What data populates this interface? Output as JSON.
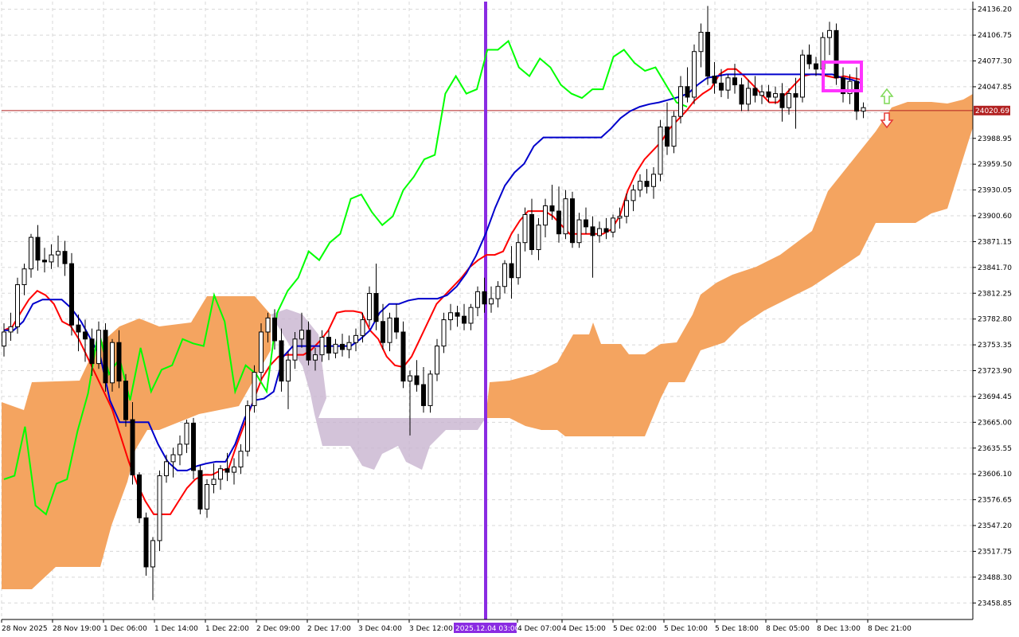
{
  "chart_data": {
    "type": "candlestick",
    "indicator": "Ichimoku Kinko Hyo",
    "y_axis": {
      "position": "right",
      "ticks": [
        24136.2,
        24106.75,
        24077.3,
        24047.85,
        24018.4,
        23988.95,
        23959.5,
        23930.05,
        23900.6,
        23871.15,
        23841.7,
        23812.25,
        23782.8,
        23753.35,
        23723.9,
        23694.45,
        23665.0,
        23635.55,
        23606.1,
        23576.65,
        23547.2,
        23517.75,
        23488.3,
        23458.85
      ],
      "tick_labels": [
        "24136.20",
        "24106.75",
        "24077.30",
        "24047.85",
        "",
        "23988.95",
        "23959.50",
        "23930.05",
        "23900.60",
        "23871.15",
        "23841.70",
        "23812.25",
        "23782.80",
        "23753.35",
        "23723.90",
        "23694.45",
        "23665.00",
        "23635.55",
        "23606.10",
        "23576.65",
        "23547.20",
        "23517.75",
        "23488.30",
        "23458.85"
      ],
      "range": [
        23440,
        24145
      ]
    },
    "x_axis": {
      "tick_labels": [
        "28 Nov 2025",
        "28 Nov 19:00",
        "1 Dec 06:00",
        "1 Dec 14:00",
        "1 Dec 22:00",
        "2 Dec 09:00",
        "2 Dec 17:00",
        "3 Dec 04:00",
        "3 Dec 12:00",
        "2025.12.04 03:00",
        "4 Dec 07:00",
        "4 Dec 15:00",
        "5 Dec 02:00",
        "5 Dec 10:00",
        "5 Dec 18:00",
        "8 Dec 05:00",
        "8 Dec 13:00",
        "8 Dec 21:00"
      ],
      "highlighted_label": "2025.12.04 03:00"
    },
    "current_price": {
      "value": 24020.69,
      "label": "24020.69",
      "line_color": "#b22222",
      "tag_color": "#b22222"
    },
    "vertical_marker": {
      "label": "2025.12.04 03:00",
      "color": "#8a2be2"
    },
    "grid": true,
    "candles": [
      [
        23752,
        23778,
        23740,
        23768
      ],
      [
        23768,
        23790,
        23758,
        23774
      ],
      [
        23774,
        23830,
        23766,
        23822
      ],
      [
        23822,
        23846,
        23810,
        23840
      ],
      [
        23840,
        23880,
        23830,
        23876
      ],
      [
        23876,
        23890,
        23838,
        23850
      ],
      [
        23850,
        23864,
        23836,
        23848
      ],
      [
        23848,
        23868,
        23840,
        23856
      ],
      [
        23856,
        23878,
        23842,
        23860
      ],
      [
        23860,
        23872,
        23832,
        23846
      ],
      [
        23846,
        23858,
        23764,
        23776
      ],
      [
        23776,
        23788,
        23746,
        23768
      ],
      [
        23768,
        23782,
        23734,
        23760
      ],
      [
        23760,
        23772,
        23718,
        23732
      ],
      [
        23732,
        23780,
        23726,
        23770
      ],
      [
        23770,
        23778,
        23700,
        23710
      ],
      [
        23710,
        23760,
        23700,
        23756
      ],
      [
        23756,
        23770,
        23704,
        23712
      ],
      [
        23712,
        23720,
        23660,
        23668
      ],
      [
        23668,
        23688,
        23594,
        23605
      ],
      [
        23605,
        23608,
        23550,
        23556
      ],
      [
        23556,
        23562,
        23490,
        23500
      ],
      [
        23500,
        23534,
        23462,
        23530
      ],
      [
        23530,
        23610,
        23518,
        23604
      ],
      [
        23604,
        23628,
        23596,
        23620
      ],
      [
        23620,
        23636,
        23602,
        23628
      ],
      [
        23628,
        23650,
        23616,
        23640
      ],
      [
        23640,
        23668,
        23630,
        23664
      ],
      [
        23664,
        23670,
        23600,
        23610
      ],
      [
        23610,
        23616,
        23560,
        23566
      ],
      [
        23566,
        23600,
        23556,
        23594
      ],
      [
        23594,
        23618,
        23584,
        23600
      ],
      [
        23600,
        23616,
        23588,
        23612
      ],
      [
        23612,
        23630,
        23598,
        23608
      ],
      [
        23608,
        23624,
        23594,
        23614
      ],
      [
        23614,
        23640,
        23606,
        23632
      ],
      [
        23632,
        23690,
        23626,
        23684
      ],
      [
        23684,
        23730,
        23676,
        23722
      ],
      [
        23722,
        23778,
        23714,
        23768
      ],
      [
        23768,
        23790,
        23756,
        23784
      ],
      [
        23784,
        23794,
        23748,
        23758
      ],
      [
        23758,
        23772,
        23700,
        23712
      ],
      [
        23712,
        23746,
        23680,
        23736
      ],
      [
        23736,
        23768,
        23726,
        23760
      ],
      [
        23760,
        23790,
        23750,
        23770
      ],
      [
        23770,
        23780,
        23730,
        23736
      ],
      [
        23736,
        23750,
        23724,
        23742
      ],
      [
        23742,
        23770,
        23734,
        23762
      ],
      [
        23762,
        23770,
        23736,
        23744
      ],
      [
        23744,
        23760,
        23738,
        23754
      ],
      [
        23754,
        23766,
        23740,
        23748
      ],
      [
        23748,
        23764,
        23738,
        23756
      ],
      [
        23756,
        23772,
        23746,
        23764
      ],
      [
        23764,
        23790,
        23756,
        23782
      ],
      [
        23782,
        23820,
        23774,
        23812
      ],
      [
        23812,
        23846,
        23770,
        23780
      ],
      [
        23780,
        23800,
        23748,
        23756
      ],
      [
        23756,
        23790,
        23746,
        23784
      ],
      [
        23784,
        23800,
        23760,
        23768
      ],
      [
        23768,
        23780,
        23704,
        23712
      ],
      [
        23712,
        23724,
        23650,
        23718
      ],
      [
        23718,
        23736,
        23700,
        23708
      ],
      [
        23708,
        23728,
        23676,
        23684
      ],
      [
        23684,
        23724,
        23676,
        23720
      ],
      [
        23720,
        23760,
        23712,
        23752
      ],
      [
        23752,
        23790,
        23744,
        23782
      ],
      [
        23782,
        23800,
        23770,
        23790
      ],
      [
        23790,
        23798,
        23774,
        23786
      ],
      [
        23786,
        23800,
        23770,
        23778
      ],
      [
        23778,
        23800,
        23770,
        23796
      ],
      [
        23796,
        23820,
        23786,
        23814
      ],
      [
        23814,
        23830,
        23790,
        23800
      ],
      [
        23800,
        23820,
        23790,
        23806
      ],
      [
        23806,
        23826,
        23796,
        23820
      ],
      [
        23820,
        23850,
        23812,
        23846
      ],
      [
        23846,
        23866,
        23806,
        23830
      ],
      [
        23830,
        23880,
        23822,
        23870
      ],
      [
        23870,
        23910,
        23860,
        23902
      ],
      [
        23902,
        23920,
        23856,
        23862
      ],
      [
        23862,
        23898,
        23850,
        23890
      ],
      [
        23890,
        23920,
        23876,
        23912
      ],
      [
        23912,
        23936,
        23896,
        23906
      ],
      [
        23906,
        23934,
        23870,
        23880
      ],
      [
        23880,
        23930,
        23874,
        23920
      ],
      [
        23920,
        23928,
        23864,
        23870
      ],
      [
        23870,
        23904,
        23864,
        23896
      ],
      [
        23896,
        23910,
        23880,
        23888
      ],
      [
        23888,
        23900,
        23830,
        23878
      ],
      [
        23878,
        23894,
        23870,
        23886
      ],
      [
        23886,
        23898,
        23874,
        23882
      ],
      [
        23882,
        23902,
        23876,
        23898
      ],
      [
        23898,
        23910,
        23886,
        23900
      ],
      [
        23900,
        23926,
        23892,
        23918
      ],
      [
        23918,
        23936,
        23906,
        23930
      ],
      [
        23930,
        23948,
        23922,
        23940
      ],
      [
        23940,
        23954,
        23926,
        23934
      ],
      [
        23934,
        23956,
        23920,
        23948
      ],
      [
        23948,
        24010,
        23940,
        24002
      ],
      [
        24002,
        24030,
        23970,
        23980
      ],
      [
        23980,
        24020,
        23972,
        24014
      ],
      [
        24014,
        24060,
        24006,
        24048
      ],
      [
        24048,
        24070,
        24030,
        24036
      ],
      [
        24036,
        24096,
        24028,
        24088
      ],
      [
        24088,
        24120,
        24070,
        24110
      ],
      [
        24110,
        24140,
        24050,
        24060
      ],
      [
        24060,
        24076,
        24040,
        24052
      ],
      [
        24052,
        24068,
        24036,
        24044
      ],
      [
        24044,
        24062,
        24034,
        24058
      ],
      [
        24058,
        24074,
        24040,
        24050
      ],
      [
        24050,
        24058,
        24020,
        24028
      ],
      [
        24028,
        24056,
        24020,
        24046
      ],
      [
        24046,
        24060,
        24030,
        24038
      ],
      [
        24038,
        24050,
        24028,
        24042
      ],
      [
        24042,
        24050,
        24030,
        24036
      ],
      [
        24036,
        24048,
        24028,
        24040
      ],
      [
        24040,
        24052,
        24008,
        24024
      ],
      [
        24024,
        24046,
        24016,
        24040
      ],
      [
        24040,
        24058,
        24000,
        24036
      ],
      [
        24036,
        24090,
        24030,
        24084
      ],
      [
        24084,
        24096,
        24068,
        24074
      ],
      [
        24074,
        24082,
        24060,
        24068
      ],
      [
        24068,
        24110,
        24060,
        24104
      ],
      [
        24104,
        24122,
        24084,
        24112
      ],
      [
        24112,
        24120,
        24050,
        24058
      ],
      [
        24058,
        24070,
        24030,
        24040
      ],
      [
        24040,
        24062,
        24028,
        24054
      ],
      [
        24054,
        24070,
        24010,
        24020
      ],
      [
        24020,
        24030,
        24012,
        24024
      ]
    ],
    "series": [
      {
        "name": "",
        "color": "#ff0000",
        "values": [
          23770,
          23774,
          23790,
          23805,
          23815,
          23810,
          23800,
          23780,
          23775,
          23760,
          23740,
          23720,
          23700,
          23680,
          23650,
          23620,
          23595,
          23575,
          23560,
          23560,
          23560,
          23575,
          23590,
          23600,
          23605,
          23605,
          23610,
          23612,
          23640,
          23665,
          23690,
          23715,
          23730,
          23740,
          23742,
          23742,
          23742,
          23748,
          23758,
          23770,
          23790,
          23792,
          23792,
          23790,
          23770,
          23760,
          23740,
          23730,
          23728,
          23740,
          23760,
          23780,
          23800,
          23810,
          23820,
          23830,
          23842,
          23850,
          23856,
          23856,
          23860,
          23880,
          23895,
          23906,
          23906,
          23906,
          23900,
          23890,
          23880,
          23880,
          23880,
          23880,
          23880,
          23885,
          23900,
          23930,
          23950,
          23965,
          23975,
          23985,
          24000,
          24010,
          24020,
          24032,
          24040,
          24046,
          24062,
          24068,
          24068,
          24060,
          24050,
          24040,
          24030,
          24030,
          24040,
          24050,
          24060,
          24062,
          24062,
          24060,
          24058,
          24060,
          24058,
          24056
        ]
      },
      {
        "name": "",
        "color": "#0000cc",
        "values": [
          23770,
          23770,
          23780,
          23800,
          23805,
          23805,
          23805,
          23795,
          23780,
          23760,
          23740,
          23690,
          23665,
          23665,
          23665,
          23665,
          23640,
          23620,
          23610,
          23610,
          23615,
          23618,
          23620,
          23620,
          23640,
          23670,
          23690,
          23692,
          23700,
          23740,
          23752,
          23752,
          23752,
          23752,
          23752,
          23752,
          23752,
          23760,
          23770,
          23790,
          23800,
          23800,
          23804,
          23806,
          23806,
          23806,
          23810,
          23820,
          23835,
          23855,
          23880,
          23910,
          23935,
          23950,
          23960,
          23980,
          23990,
          23990,
          23990,
          23990,
          23990,
          23990,
          23990,
          24000,
          24012,
          24020,
          24025,
          24028,
          24030,
          24033,
          24036,
          24040,
          24050,
          24058,
          24060,
          24062,
          24062,
          24062,
          24062,
          24062,
          24062,
          24062,
          24062,
          24062,
          24062,
          24062,
          24062,
          24058,
          24056,
          24052
        ]
      },
      {
        "name": "",
        "color": "#00ff00",
        "values": [
          23600,
          23604,
          23660,
          23570,
          23560,
          23595,
          23600,
          23655,
          23698,
          23770,
          23720,
          23738,
          23690,
          23750,
          23700,
          23725,
          23730,
          23760,
          23755,
          23752,
          23810,
          23780,
          23700,
          23730,
          23720,
          23700,
          23790,
          23815,
          23830,
          23860,
          23850,
          23870,
          23880,
          23920,
          23925,
          23905,
          23890,
          23900,
          23930,
          23945,
          23965,
          23970,
          24040,
          24060,
          24040,
          24045,
          24090,
          24090,
          24100,
          24070,
          24060,
          24080,
          24070,
          24050,
          24040,
          24035,
          24045,
          24045,
          24082,
          24090,
          24075,
          24066,
          24070,
          24050,
          24030,
          24025
        ]
      },
      {
        "name": "",
        "color": "#f4a460",
        "values": []
      },
      {
        "name": "",
        "color": "#c8b4d0",
        "values": []
      }
    ],
    "signals": [
      {
        "type": "arrow-up",
        "color": "#7ed957"
      },
      {
        "type": "arrow-down",
        "color": "#e53935"
      }
    ],
    "highlight_box": {
      "color": "#ff33ff"
    }
  }
}
